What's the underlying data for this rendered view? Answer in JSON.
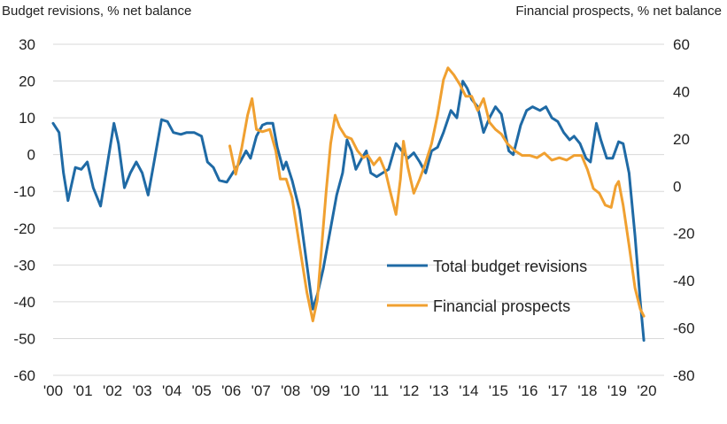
{
  "chart_data": {
    "type": "line",
    "title": "",
    "y_left_label": "Budget revisions, % net balance",
    "y_right_label": "Financial prospects, % net balance",
    "y_left_lim": [
      -60,
      30
    ],
    "y_left_ticks": [
      30,
      20,
      10,
      0,
      -10,
      -20,
      -30,
      -40,
      -50,
      -60
    ],
    "y_right_lim": [
      -80,
      60
    ],
    "y_right_ticks": [
      60,
      40,
      20,
      0,
      -20,
      -40,
      -60,
      -80
    ],
    "x_lim": [
      2000,
      2021
    ],
    "x_ticks": [
      {
        "value": 2000,
        "label": "'00"
      },
      {
        "value": 2001,
        "label": "'01"
      },
      {
        "value": 2002,
        "label": "'02"
      },
      {
        "value": 2003,
        "label": "'03"
      },
      {
        "value": 2004,
        "label": "'04"
      },
      {
        "value": 2005,
        "label": "'05"
      },
      {
        "value": 2006,
        "label": "'06"
      },
      {
        "value": 2007,
        "label": "'07"
      },
      {
        "value": 2008,
        "label": "'08"
      },
      {
        "value": 2009,
        "label": "'09"
      },
      {
        "value": 2010,
        "label": "'10"
      },
      {
        "value": 2011,
        "label": "'11"
      },
      {
        "value": 2012,
        "label": "'12"
      },
      {
        "value": 2013,
        "label": "'13"
      },
      {
        "value": 2014,
        "label": "'14"
      },
      {
        "value": 2015,
        "label": "'15"
      },
      {
        "value": 2016,
        "label": "'16"
      },
      {
        "value": 2017,
        "label": "'17"
      },
      {
        "value": 2018,
        "label": "'18"
      },
      {
        "value": 2019,
        "label": "'19"
      },
      {
        "value": 2020,
        "label": "'20"
      }
    ],
    "grid": "horizontal",
    "legend": "lower-right",
    "series": [
      {
        "name": "Total budget revisions",
        "axis": "left",
        "color": "#1f6aa5",
        "points": [
          [
            2000.0,
            8.5
          ],
          [
            2000.2,
            6.0
          ],
          [
            2000.35,
            -5.0
          ],
          [
            2000.5,
            -12.5
          ],
          [
            2000.75,
            -3.5
          ],
          [
            2000.95,
            -4.0
          ],
          [
            2001.15,
            -2.0
          ],
          [
            2001.35,
            -9.0
          ],
          [
            2001.6,
            -14.0
          ],
          [
            2001.8,
            -4.0
          ],
          [
            2002.05,
            8.5
          ],
          [
            2002.2,
            3.0
          ],
          [
            2002.4,
            -9.0
          ],
          [
            2002.6,
            -5.0
          ],
          [
            2002.8,
            -2.0
          ],
          [
            2003.0,
            -5.0
          ],
          [
            2003.2,
            -11.0
          ],
          [
            2003.4,
            -2.0
          ],
          [
            2003.65,
            9.5
          ],
          [
            2003.85,
            9.0
          ],
          [
            2004.05,
            6.0
          ],
          [
            2004.3,
            5.5
          ],
          [
            2004.5,
            6.0
          ],
          [
            2004.75,
            6.0
          ],
          [
            2005.0,
            5.0
          ],
          [
            2005.2,
            -2.0
          ],
          [
            2005.4,
            -3.5
          ],
          [
            2005.6,
            -7.0
          ],
          [
            2005.85,
            -7.5
          ],
          [
            2006.05,
            -5.0
          ],
          [
            2006.3,
            -2.0
          ],
          [
            2006.5,
            1.0
          ],
          [
            2006.65,
            -1.0
          ],
          [
            2006.85,
            5.0
          ],
          [
            2007.05,
            8.0
          ],
          [
            2007.2,
            8.5
          ],
          [
            2007.4,
            8.5
          ],
          [
            2007.55,
            2.0
          ],
          [
            2007.75,
            -4.0
          ],
          [
            2007.85,
            -2.0
          ],
          [
            2008.05,
            -7.0
          ],
          [
            2008.3,
            -15.0
          ],
          [
            2008.55,
            -30.0
          ],
          [
            2008.75,
            -42.0
          ],
          [
            2008.9,
            -38.0
          ],
          [
            2009.1,
            -31.0
          ],
          [
            2009.35,
            -20.0
          ],
          [
            2009.55,
            -11.0
          ],
          [
            2009.75,
            -5.0
          ],
          [
            2009.9,
            4.0
          ],
          [
            2010.05,
            1.0
          ],
          [
            2010.2,
            -4.0
          ],
          [
            2010.4,
            -1.0
          ],
          [
            2010.55,
            1.0
          ],
          [
            2010.7,
            -5.0
          ],
          [
            2010.9,
            -6.0
          ],
          [
            2011.1,
            -5.0
          ],
          [
            2011.3,
            -4.0
          ],
          [
            2011.55,
            3.0
          ],
          [
            2011.75,
            1.0
          ],
          [
            2011.95,
            -1.0
          ],
          [
            2012.15,
            0.5
          ],
          [
            2012.35,
            -2.0
          ],
          [
            2012.55,
            -5.0
          ],
          [
            2012.75,
            1.0
          ],
          [
            2012.95,
            2.0
          ],
          [
            2013.15,
            6.0
          ],
          [
            2013.4,
            12.0
          ],
          [
            2013.6,
            10.0
          ],
          [
            2013.8,
            20.0
          ],
          [
            2013.95,
            18.0
          ],
          [
            2014.1,
            15.0
          ],
          [
            2014.3,
            13.0
          ],
          [
            2014.5,
            6.0
          ],
          [
            2014.7,
            10.0
          ],
          [
            2014.9,
            13.0
          ],
          [
            2015.1,
            11.0
          ],
          [
            2015.35,
            1.0
          ],
          [
            2015.5,
            0.0
          ],
          [
            2015.75,
            8.0
          ],
          [
            2015.95,
            12.0
          ],
          [
            2016.15,
            13.0
          ],
          [
            2016.4,
            12.0
          ],
          [
            2016.6,
            13.0
          ],
          [
            2016.8,
            10.0
          ],
          [
            2017.0,
            9.0
          ],
          [
            2017.2,
            6.0
          ],
          [
            2017.4,
            4.0
          ],
          [
            2017.55,
            5.0
          ],
          [
            2017.75,
            3.0
          ],
          [
            2017.95,
            -1.0
          ],
          [
            2018.1,
            -2.0
          ],
          [
            2018.3,
            8.5
          ],
          [
            2018.45,
            4.0
          ],
          [
            2018.65,
            -1.0
          ],
          [
            2018.85,
            -1.0
          ],
          [
            2019.05,
            3.5
          ],
          [
            2019.2,
            3.0
          ],
          [
            2019.4,
            -5.0
          ],
          [
            2019.6,
            -22.0
          ],
          [
            2019.78,
            -40.0
          ],
          [
            2019.9,
            -50.5
          ]
        ]
      },
      {
        "name": "Financial prospects",
        "axis": "right",
        "color": "#f0a030",
        "points": [
          [
            2005.95,
            17.0
          ],
          [
            2006.15,
            5.0
          ],
          [
            2006.35,
            16.0
          ],
          [
            2006.55,
            30.0
          ],
          [
            2006.7,
            37.0
          ],
          [
            2006.85,
            24.0
          ],
          [
            2007.05,
            23.0
          ],
          [
            2007.3,
            24.0
          ],
          [
            2007.5,
            15.0
          ],
          [
            2007.65,
            3.0
          ],
          [
            2007.85,
            3.0
          ],
          [
            2008.05,
            -5.0
          ],
          [
            2008.3,
            -25.0
          ],
          [
            2008.55,
            -45.0
          ],
          [
            2008.75,
            -57.0
          ],
          [
            2008.9,
            -48.0
          ],
          [
            2009.05,
            -25.0
          ],
          [
            2009.2,
            -2.0
          ],
          [
            2009.35,
            18.0
          ],
          [
            2009.5,
            30.0
          ],
          [
            2009.65,
            25.0
          ],
          [
            2009.85,
            21.0
          ],
          [
            2010.05,
            20.0
          ],
          [
            2010.25,
            15.0
          ],
          [
            2010.45,
            12.0
          ],
          [
            2010.6,
            13.0
          ],
          [
            2010.8,
            9.0
          ],
          [
            2011.0,
            12.0
          ],
          [
            2011.2,
            6.0
          ],
          [
            2011.35,
            -2.0
          ],
          [
            2011.55,
            -12.0
          ],
          [
            2011.7,
            3.0
          ],
          [
            2011.8,
            19.0
          ],
          [
            2011.95,
            8.0
          ],
          [
            2012.15,
            -3.0
          ],
          [
            2012.35,
            3.0
          ],
          [
            2012.55,
            10.0
          ],
          [
            2012.75,
            18.0
          ],
          [
            2012.95,
            30.0
          ],
          [
            2013.15,
            45.0
          ],
          [
            2013.3,
            50.0
          ],
          [
            2013.5,
            47.0
          ],
          [
            2013.7,
            43.0
          ],
          [
            2013.9,
            38.0
          ],
          [
            2014.1,
            38.0
          ],
          [
            2014.3,
            32.0
          ],
          [
            2014.5,
            37.0
          ],
          [
            2014.7,
            27.0
          ],
          [
            2014.9,
            24.0
          ],
          [
            2015.1,
            22.0
          ],
          [
            2015.3,
            18.0
          ],
          [
            2015.55,
            15.0
          ],
          [
            2015.8,
            13.0
          ],
          [
            2016.05,
            13.0
          ],
          [
            2016.3,
            12.0
          ],
          [
            2016.55,
            14.0
          ],
          [
            2016.8,
            11.0
          ],
          [
            2017.05,
            12.0
          ],
          [
            2017.3,
            11.0
          ],
          [
            2017.55,
            13.0
          ],
          [
            2017.8,
            13.0
          ],
          [
            2018.0,
            7.0
          ],
          [
            2018.2,
            -1.0
          ],
          [
            2018.4,
            -3.0
          ],
          [
            2018.6,
            -8.0
          ],
          [
            2018.8,
            -9.0
          ],
          [
            2018.95,
            0.0
          ],
          [
            2019.05,
            2.0
          ],
          [
            2019.2,
            -8.0
          ],
          [
            2019.4,
            -25.0
          ],
          [
            2019.6,
            -43.0
          ],
          [
            2019.78,
            -52.0
          ],
          [
            2019.9,
            -55.0
          ]
        ]
      }
    ]
  }
}
